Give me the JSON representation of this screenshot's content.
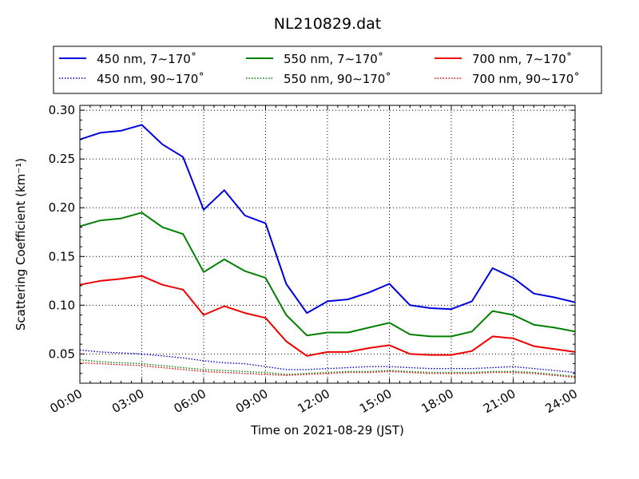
{
  "chart_data": {
    "type": "line",
    "title": "NL210829.dat",
    "xlabel": "Time on 2021-08-29 (JST)",
    "ylabel": "Scattering Coefficient (km⁻¹)",
    "xlim": [
      "00:00",
      "24:00"
    ],
    "ylim": [
      0.02,
      0.305
    ],
    "x_ticks": [
      "00:00",
      "03:00",
      "06:00",
      "09:00",
      "12:00",
      "15:00",
      "18:00",
      "21:00",
      "24:00"
    ],
    "y_ticks": [
      "0.05",
      "0.10",
      "0.15",
      "0.20",
      "0.25",
      "0.30"
    ],
    "grid": true,
    "legend_position": "top",
    "x": [
      "00:00",
      "01:00",
      "02:00",
      "03:00",
      "04:00",
      "05:00",
      "06:00",
      "07:00",
      "08:00",
      "09:00",
      "10:00",
      "11:00",
      "12:00",
      "13:00",
      "14:00",
      "15:00",
      "16:00",
      "17:00",
      "18:00",
      "19:00",
      "20:00",
      "21:00",
      "22:00",
      "23:00",
      "24:00"
    ],
    "series": [
      {
        "name": "450 nm, 7∼170˚",
        "color": "#0000dd",
        "style": "solid",
        "values": [
          0.27,
          0.277,
          0.279,
          0.285,
          0.265,
          0.252,
          0.198,
          0.218,
          0.192,
          0.184,
          0.122,
          0.092,
          0.104,
          0.106,
          0.113,
          0.122,
          0.1,
          0.097,
          0.096,
          0.104,
          0.138,
          0.128,
          0.112,
          0.108,
          0.103
        ]
      },
      {
        "name": "450 nm, 90∼170˚",
        "color": "#0000dd",
        "style": "dotted",
        "values": [
          0.054,
          0.052,
          0.051,
          0.05,
          0.048,
          0.046,
          0.043,
          0.041,
          0.04,
          0.037,
          0.034,
          0.034,
          0.035,
          0.036,
          0.037,
          0.037,
          0.036,
          0.035,
          0.035,
          0.035,
          0.036,
          0.037,
          0.035,
          0.033,
          0.031
        ]
      },
      {
        "name": "550 nm, 7∼170˚",
        "color": "#008000",
        "style": "solid",
        "values": [
          0.181,
          0.187,
          0.189,
          0.195,
          0.18,
          0.173,
          0.134,
          0.147,
          0.135,
          0.128,
          0.09,
          0.069,
          0.072,
          0.072,
          0.077,
          0.082,
          0.07,
          0.068,
          0.068,
          0.073,
          0.094,
          0.09,
          0.08,
          0.077,
          0.073
        ]
      },
      {
        "name": "550 nm, 90∼170˚",
        "color": "#008000",
        "style": "dotted",
        "values": [
          0.044,
          0.042,
          0.041,
          0.04,
          0.038,
          0.036,
          0.034,
          0.033,
          0.032,
          0.031,
          0.029,
          0.03,
          0.031,
          0.032,
          0.032,
          0.033,
          0.032,
          0.031,
          0.031,
          0.031,
          0.032,
          0.032,
          0.031,
          0.029,
          0.027
        ]
      },
      {
        "name": "700 nm, 7∼170˚",
        "color": "#ee0000",
        "style": "solid",
        "values": [
          0.121,
          0.125,
          0.127,
          0.13,
          0.121,
          0.116,
          0.09,
          0.099,
          0.092,
          0.087,
          0.063,
          0.048,
          0.052,
          0.052,
          0.056,
          0.059,
          0.05,
          0.049,
          0.049,
          0.053,
          0.068,
          0.066,
          0.058,
          0.055,
          0.052
        ]
      },
      {
        "name": "700 nm, 90∼170˚",
        "color": "#ee0000",
        "style": "dotted",
        "values": [
          0.041,
          0.04,
          0.039,
          0.038,
          0.036,
          0.034,
          0.032,
          0.031,
          0.03,
          0.029,
          0.028,
          0.029,
          0.03,
          0.031,
          0.031,
          0.032,
          0.031,
          0.03,
          0.03,
          0.03,
          0.031,
          0.031,
          0.03,
          0.028,
          0.026
        ]
      }
    ]
  }
}
